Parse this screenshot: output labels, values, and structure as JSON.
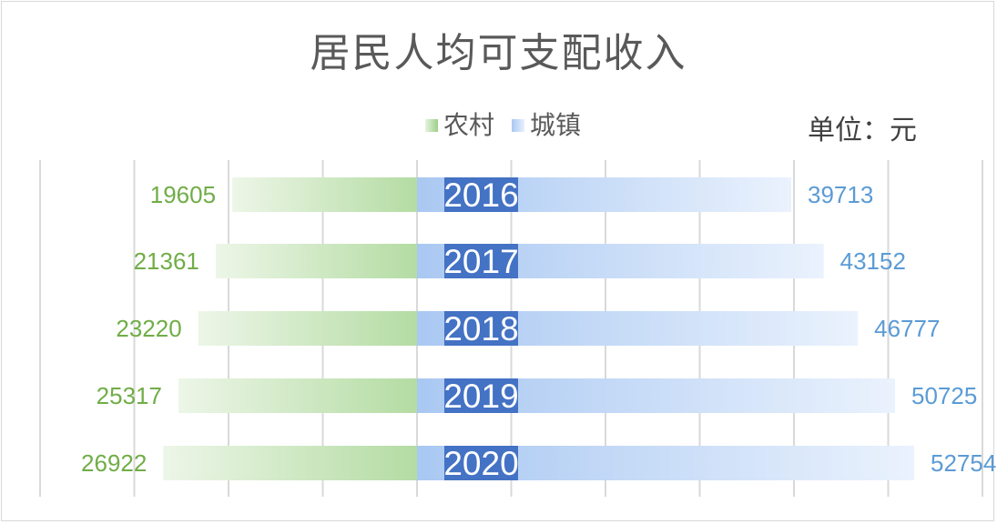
{
  "chart_data": {
    "type": "bar",
    "orientation": "horizontal-butterfly",
    "title": "居民人均可支配收入",
    "unit_label": "单位：元",
    "categories": [
      "2016",
      "2017",
      "2018",
      "2019",
      "2020"
    ],
    "series": [
      {
        "name": "农村",
        "values": [
          19605,
          21361,
          23220,
          25317,
          26922
        ],
        "color": "#9fd08a"
      },
      {
        "name": "城镇",
        "values": [
          39713,
          43152,
          46777,
          50725,
          52754
        ],
        "color": "#a9c8f2"
      }
    ],
    "legend_position": "top",
    "category_label_color": "#4472c4",
    "rural_label_color": "#70ad47",
    "urban_label_color": "#5b9bd5",
    "grid": true
  }
}
